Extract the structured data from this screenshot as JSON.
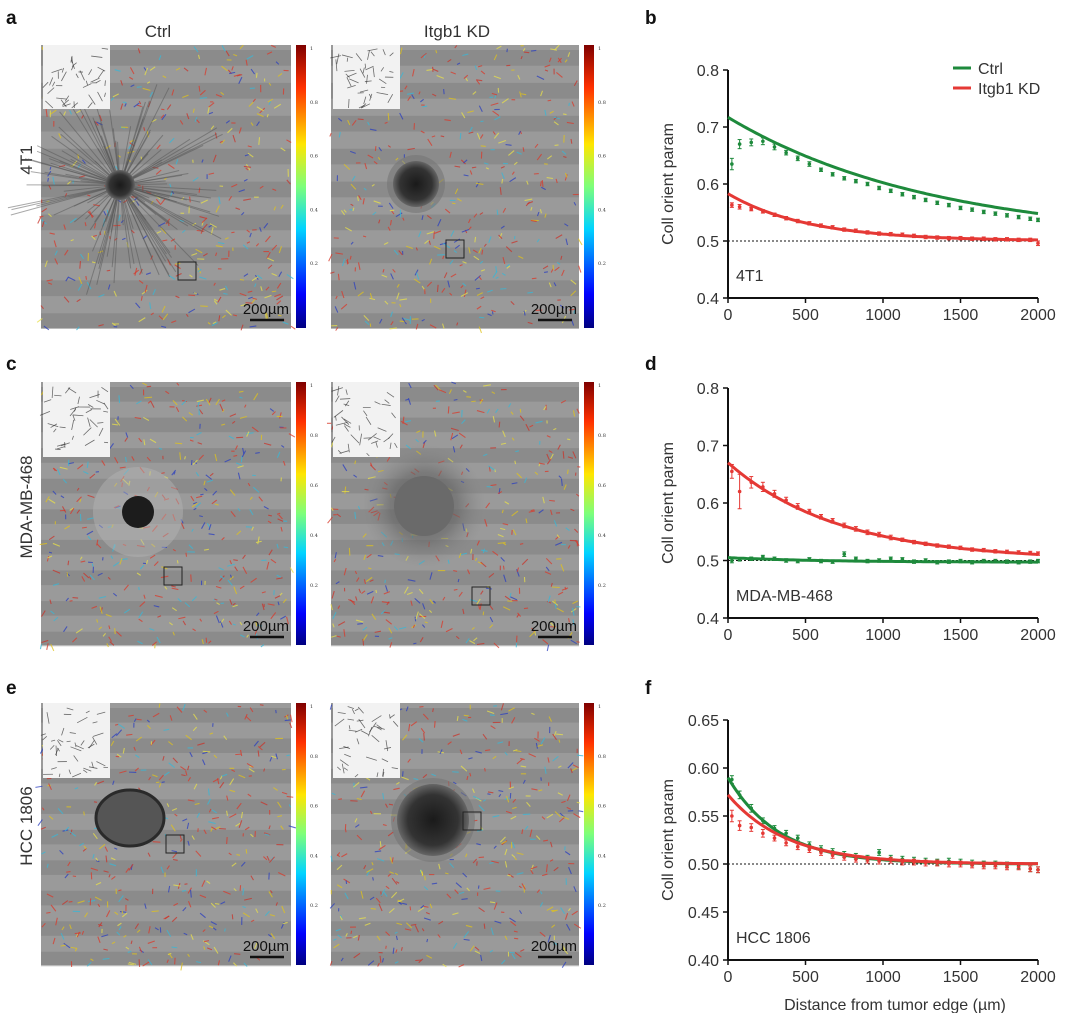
{
  "panels": {
    "a": "a",
    "b": "b",
    "c": "c",
    "d": "d",
    "e": "e",
    "f": "f"
  },
  "columns": [
    "Ctrl",
    "Itgb1 KD"
  ],
  "rows": [
    "4T1",
    "MDA-MB-468",
    "HCC 1806"
  ],
  "scale_bar": "200µm",
  "colorbar_ticks": [
    "1",
    "0.8",
    "0.6",
    "0.4",
    "0.2"
  ],
  "colors": {
    "ctrl": "#1e8a3c",
    "kd": "#e53935"
  },
  "chart_data": [
    {
      "type": "line",
      "panel": "b",
      "annotation": "4T1",
      "ylabel": "Coll orient param",
      "xlabel": "",
      "xlim": [
        0,
        2000
      ],
      "ylim": [
        0.4,
        0.8
      ],
      "xticks": [
        "0",
        "500",
        "1000",
        "1500",
        "2000"
      ],
      "yticks": [
        "0.4",
        "0.5",
        "0.6",
        "0.7",
        "0.8"
      ],
      "ytick_values": [
        0.4,
        0.5,
        0.6,
        0.7,
        0.8
      ],
      "reference_line": 0.5,
      "legend": [
        "Ctrl",
        "Itgb1 KD"
      ],
      "legend_position": "top-right",
      "series": [
        {
          "name": "Ctrl",
          "color": "#1e8a3c",
          "fit": {
            "a": 0.5,
            "b": 0.217,
            "tau": 1330
          },
          "x": [
            25,
            75,
            150,
            225,
            300,
            375,
            450,
            525,
            600,
            675,
            750,
            825,
            900,
            975,
            1050,
            1125,
            1200,
            1275,
            1350,
            1425,
            1500,
            1575,
            1650,
            1725,
            1800,
            1875,
            1950,
            2000
          ],
          "y": [
            0.635,
            0.67,
            0.673,
            0.675,
            0.665,
            0.655,
            0.645,
            0.635,
            0.625,
            0.617,
            0.61,
            0.605,
            0.6,
            0.593,
            0.588,
            0.582,
            0.577,
            0.572,
            0.567,
            0.563,
            0.558,
            0.555,
            0.551,
            0.548,
            0.545,
            0.542,
            0.539,
            0.537
          ],
          "err": [
            0.01,
            0.008,
            0.006,
            0.006,
            0.005,
            0.004,
            0.004,
            0.004,
            0.003,
            0.003,
            0.003,
            0.003,
            0.003,
            0.003,
            0.003,
            0.003,
            0.003,
            0.003,
            0.003,
            0.003,
            0.003,
            0.003,
            0.003,
            0.003,
            0.003,
            0.003,
            0.003,
            0.003
          ]
        },
        {
          "name": "Itgb1 KD",
          "color": "#e53935",
          "fit": {
            "a": 0.5,
            "b": 0.083,
            "tau": 520
          },
          "x": [
            25,
            75,
            150,
            225,
            300,
            375,
            450,
            525,
            600,
            675,
            750,
            825,
            900,
            975,
            1050,
            1125,
            1200,
            1275,
            1350,
            1425,
            1500,
            1575,
            1650,
            1725,
            1800,
            1875,
            1950,
            2000
          ],
          "y": [
            0.563,
            0.56,
            0.556,
            0.552,
            0.546,
            0.54,
            0.535,
            0.531,
            0.527,
            0.524,
            0.52,
            0.518,
            0.515,
            0.513,
            0.512,
            0.511,
            0.509,
            0.507,
            0.506,
            0.505,
            0.505,
            0.504,
            0.504,
            0.503,
            0.503,
            0.502,
            0.502,
            0.496
          ],
          "err": [
            0.004,
            0.004,
            0.003,
            0.003,
            0.003,
            0.003,
            0.003,
            0.003,
            0.003,
            0.003,
            0.003,
            0.003,
            0.003,
            0.003,
            0.003,
            0.003,
            0.003,
            0.003,
            0.003,
            0.003,
            0.003,
            0.003,
            0.003,
            0.003,
            0.003,
            0.003,
            0.003,
            0.004
          ]
        }
      ]
    },
    {
      "type": "line",
      "panel": "d",
      "annotation": "MDA-MB-468",
      "ylabel": "Coll orient param",
      "xlabel": "",
      "xlim": [
        0,
        2000
      ],
      "ylim": [
        0.4,
        0.8
      ],
      "xticks": [
        "0",
        "500",
        "1000",
        "1500",
        "2000"
      ],
      "yticks": [
        "0.4",
        "0.5",
        "0.6",
        "0.7",
        "0.8"
      ],
      "ytick_values": [
        0.4,
        0.5,
        0.6,
        0.7,
        0.8
      ],
      "reference_line": 0.5,
      "legend": [],
      "series": [
        {
          "name": "Ctrl",
          "color": "#1e8a3c",
          "fit": {
            "a": 0.497,
            "b": 0.008,
            "tau": 600
          },
          "x": [
            25,
            75,
            150,
            225,
            300,
            375,
            450,
            525,
            600,
            675,
            750,
            825,
            900,
            975,
            1050,
            1125,
            1200,
            1275,
            1350,
            1425,
            1500,
            1575,
            1650,
            1725,
            1800,
            1875,
            1950,
            2000
          ],
          "y": [
            0.5,
            0.502,
            0.503,
            0.506,
            0.503,
            0.5,
            0.499,
            0.502,
            0.499,
            0.498,
            0.511,
            0.503,
            0.499,
            0.5,
            0.503,
            0.502,
            0.498,
            0.5,
            0.497,
            0.498,
            0.499,
            0.497,
            0.499,
            0.499,
            0.498,
            0.497,
            0.498,
            0.499
          ],
          "err": [
            0.004,
            0.003,
            0.003,
            0.003,
            0.003,
            0.003,
            0.003,
            0.003,
            0.003,
            0.003,
            0.004,
            0.003,
            0.003,
            0.003,
            0.003,
            0.003,
            0.003,
            0.003,
            0.003,
            0.003,
            0.003,
            0.003,
            0.003,
            0.003,
            0.003,
            0.003,
            0.003,
            0.003
          ]
        },
        {
          "name": "Itgb1 KD",
          "color": "#e53935",
          "fit": {
            "a": 0.5,
            "b": 0.17,
            "tau": 720
          },
          "x": [
            25,
            75,
            150,
            225,
            300,
            375,
            450,
            525,
            600,
            675,
            750,
            825,
            900,
            975,
            1050,
            1125,
            1200,
            1275,
            1350,
            1425,
            1500,
            1575,
            1650,
            1725,
            1800,
            1875,
            1950,
            2000
          ],
          "y": [
            0.655,
            0.62,
            0.636,
            0.628,
            0.616,
            0.605,
            0.594,
            0.585,
            0.576,
            0.569,
            0.561,
            0.555,
            0.549,
            0.545,
            0.54,
            0.536,
            0.532,
            0.529,
            0.526,
            0.524,
            0.522,
            0.519,
            0.518,
            0.516,
            0.515,
            0.514,
            0.513,
            0.512
          ],
          "err": [
            0.012,
            0.03,
            0.01,
            0.008,
            0.006,
            0.005,
            0.005,
            0.004,
            0.004,
            0.004,
            0.004,
            0.004,
            0.004,
            0.004,
            0.004,
            0.003,
            0.003,
            0.003,
            0.003,
            0.003,
            0.003,
            0.003,
            0.003,
            0.003,
            0.003,
            0.003,
            0.003,
            0.003
          ]
        }
      ]
    },
    {
      "type": "line",
      "panel": "f",
      "annotation": "HCC  1806",
      "ylabel": "Coll orient param",
      "xlabel": "Distance from tumor edge (µm)",
      "xlim": [
        0,
        2000
      ],
      "ylim": [
        0.4,
        0.65
      ],
      "xticks": [
        "0",
        "500",
        "1000",
        "1500",
        "2000"
      ],
      "yticks": [
        "0.40",
        "0.45",
        "0.50",
        "0.55",
        "0.60",
        "0.65"
      ],
      "ytick_values": [
        0.4,
        0.45,
        0.5,
        0.55,
        0.6,
        0.65
      ],
      "reference_line": 0.5,
      "legend": [],
      "series": [
        {
          "name": "Ctrl",
          "color": "#1e8a3c",
          "fit": {
            "a": 0.5,
            "b": 0.09,
            "tau": 330
          },
          "x": [
            25,
            75,
            150,
            225,
            300,
            375,
            450,
            525,
            600,
            675,
            750,
            825,
            900,
            975,
            1050,
            1125,
            1200,
            1275,
            1350,
            1425,
            1500,
            1575,
            1650,
            1725,
            1800,
            1875,
            1950,
            2000
          ],
          "y": [
            0.588,
            0.572,
            0.558,
            0.545,
            0.537,
            0.532,
            0.527,
            0.52,
            0.516,
            0.513,
            0.51,
            0.508,
            0.506,
            0.512,
            0.506,
            0.505,
            0.504,
            0.503,
            0.502,
            0.503,
            0.502,
            0.501,
            0.5,
            0.5,
            0.499,
            0.498,
            0.495,
            0.494
          ],
          "err": [
            0.004,
            0.004,
            0.004,
            0.003,
            0.003,
            0.003,
            0.003,
            0.003,
            0.003,
            0.003,
            0.003,
            0.003,
            0.003,
            0.003,
            0.003,
            0.003,
            0.003,
            0.003,
            0.003,
            0.003,
            0.003,
            0.003,
            0.003,
            0.003,
            0.003,
            0.003,
            0.003,
            0.003
          ]
        },
        {
          "name": "Itgb1 KD",
          "color": "#e53935",
          "fit": {
            "a": 0.5,
            "b": 0.072,
            "tau": 380
          },
          "x": [
            25,
            75,
            150,
            225,
            300,
            375,
            450,
            525,
            600,
            675,
            750,
            825,
            900,
            975,
            1050,
            1125,
            1200,
            1275,
            1350,
            1425,
            1500,
            1575,
            1650,
            1725,
            1800,
            1875,
            1950,
            2000
          ],
          "y": [
            0.55,
            0.54,
            0.538,
            0.532,
            0.527,
            0.522,
            0.518,
            0.515,
            0.512,
            0.509,
            0.507,
            0.505,
            0.504,
            0.503,
            0.504,
            0.502,
            0.502,
            0.501,
            0.501,
            0.5,
            0.5,
            0.499,
            0.498,
            0.498,
            0.497,
            0.497,
            0.495,
            0.494
          ],
          "err": [
            0.006,
            0.005,
            0.004,
            0.004,
            0.003,
            0.003,
            0.003,
            0.003,
            0.003,
            0.003,
            0.003,
            0.003,
            0.003,
            0.003,
            0.003,
            0.003,
            0.003,
            0.003,
            0.003,
            0.003,
            0.003,
            0.003,
            0.003,
            0.003,
            0.003,
            0.003,
            0.003,
            0.003
          ]
        }
      ]
    }
  ]
}
